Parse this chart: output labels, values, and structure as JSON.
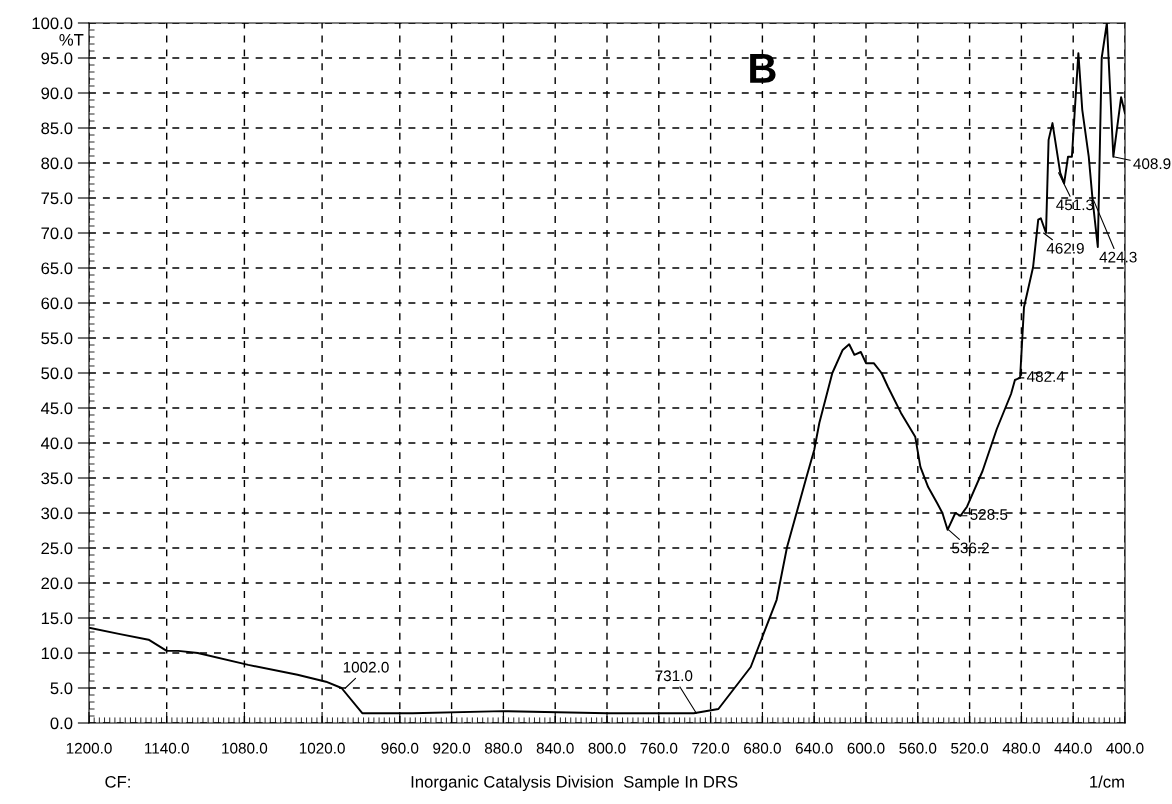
{
  "chart_data": {
    "type": "line",
    "title": "B",
    "ylabel": "%T",
    "xlabel": "1/cm",
    "annotations": [
      {
        "text": "1002.0",
        "x": 1002,
        "y": 5.0
      },
      {
        "text": "731.0",
        "x": 731,
        "y": 1.4
      },
      {
        "text": "536.2",
        "x": 536.2,
        "y": 27.6
      },
      {
        "text": "528.5",
        "x": 528.5,
        "y": 29.6
      },
      {
        "text": "482.4",
        "x": 482.4,
        "y": 49.3
      },
      {
        "text": "462.9",
        "x": 462.9,
        "y": 70.0
      },
      {
        "text": "451.3",
        "x": 451.3,
        "y": 78.6
      },
      {
        "text": "408.9",
        "x": 408.9,
        "y": 80.9
      },
      {
        "text": "424.3",
        "x": 424.3,
        "y": 74.7
      },
      "CF:",
      "Inorganic Catalysis Division  Sample In DRS"
    ],
    "series": [
      {
        "color": "#000000",
        "x": [
          1200,
          1176,
          1154,
          1140,
          1131,
          1116,
          1077,
          1039,
          1017,
          1005,
          989,
          950,
          880,
          800,
          733,
          714,
          689,
          669,
          661,
          646,
          640,
          636,
          626,
          618,
          613,
          609,
          604,
          600,
          594,
          588,
          583,
          573,
          562,
          558,
          552,
          545,
          541,
          537,
          531,
          527,
          522,
          510,
          499,
          488,
          485,
          481,
          478,
          471,
          467,
          465,
          461,
          459,
          456,
          450,
          447,
          444,
          441,
          436,
          433,
          428,
          425,
          421,
          418,
          414,
          409,
          403,
          400
        ],
        "values": [
          13.6,
          12.7,
          11.9,
          10.3,
          10.3,
          10.0,
          8.3,
          6.9,
          5.9,
          5.0,
          1.4,
          1.4,
          1.7,
          1.4,
          1.4,
          2.0,
          8.0,
          17.6,
          25.1,
          35.1,
          39.0,
          42.9,
          50.0,
          53.3,
          54.1,
          52.6,
          53.0,
          51.4,
          51.4,
          50.0,
          48.0,
          44.3,
          40.9,
          36.6,
          33.7,
          31.4,
          30.0,
          27.6,
          30.0,
          29.6,
          30.9,
          36.0,
          42.0,
          47.0,
          49.0,
          49.3,
          59.4,
          65.1,
          71.9,
          72.1,
          70.0,
          83.3,
          85.7,
          78.6,
          77.1,
          80.9,
          80.9,
          95.7,
          87.6,
          80.9,
          74.7,
          68.0,
          95.0,
          100.0,
          80.9,
          89.4,
          87.1
        ]
      }
    ],
    "xlim": [
      1200,
      400
    ],
    "xticks": [
      {
        "value": 1200,
        "label": "1200.0"
      },
      {
        "value": 1140,
        "label": "1140.0"
      },
      {
        "value": 1080,
        "label": "1080.0"
      },
      {
        "value": 1020,
        "label": "1020.0"
      },
      {
        "value": 960,
        "label": "960.0"
      },
      {
        "value": 920,
        "label": "920.0"
      },
      {
        "value": 880,
        "label": "880.0"
      },
      {
        "value": 840,
        "label": "840.0"
      },
      {
        "value": 800,
        "label": "800.0"
      },
      {
        "value": 760,
        "label": "760.0"
      },
      {
        "value": 720,
        "label": "720.0"
      },
      {
        "value": 680,
        "label": "680.0"
      },
      {
        "value": 640,
        "label": "640.0"
      },
      {
        "value": 600,
        "label": "600.0"
      },
      {
        "value": 560,
        "label": "560.0"
      },
      {
        "value": 520,
        "label": "520.0"
      },
      {
        "value": 480,
        "label": "480.0"
      },
      {
        "value": 440,
        "label": "440.0"
      },
      {
        "value": 400,
        "label": "400.0"
      }
    ],
    "ylim": [
      0,
      100
    ],
    "yticks": [
      {
        "value": 0,
        "label": "0.0"
      },
      {
        "value": 5,
        "label": "5.0"
      },
      {
        "value": 10,
        "label": "10.0"
      },
      {
        "value": 15,
        "label": "15.0"
      },
      {
        "value": 20,
        "label": "20.0"
      },
      {
        "value": 25,
        "label": "25.0"
      },
      {
        "value": 30,
        "label": "30.0"
      },
      {
        "value": 35,
        "label": "35.0"
      },
      {
        "value": 40,
        "label": "40.0"
      },
      {
        "value": 45,
        "label": "45.0"
      },
      {
        "value": 50,
        "label": "50.0"
      },
      {
        "value": 55,
        "label": "55.0"
      },
      {
        "value": 60,
        "label": "60.0"
      },
      {
        "value": 65,
        "label": "65.0"
      },
      {
        "value": 70,
        "label": "70.0"
      },
      {
        "value": 75,
        "label": "75.0"
      },
      {
        "value": 80,
        "label": "80.0"
      },
      {
        "value": 85,
        "label": "85.0"
      },
      {
        "value": 90,
        "label": "90.0"
      },
      {
        "value": 95,
        "label": "95.0"
      },
      {
        "value": 100,
        "label": "100.0"
      }
    ],
    "grid": true,
    "line_style": "solid"
  }
}
